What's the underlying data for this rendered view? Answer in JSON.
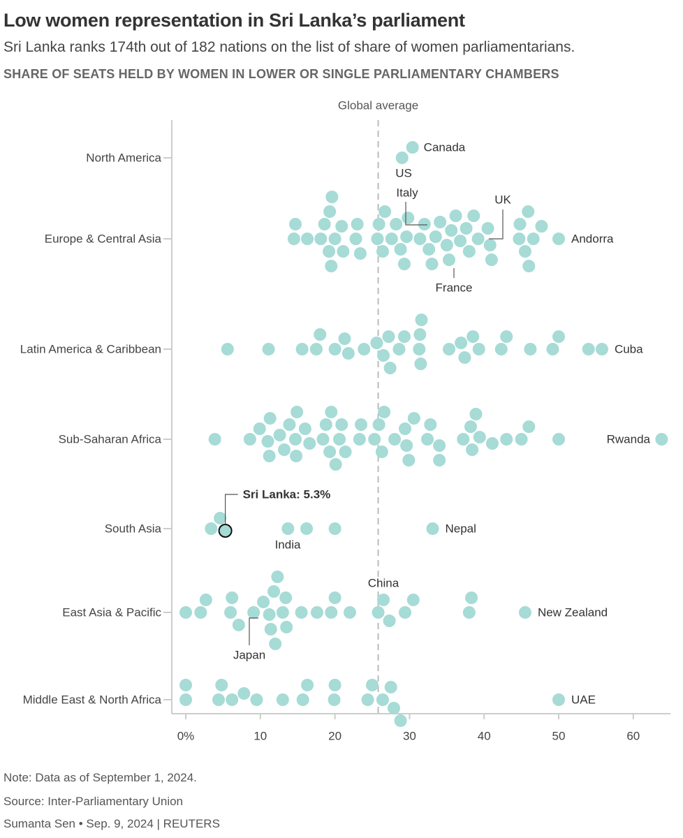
{
  "header": {
    "title": "Low women representation in Sri Lanka’s parliament",
    "subtitle": "Sri Lanka ranks 174th out of 182 nations on the list of share of women parliamentarians.",
    "chart_heading": "SHARE OF SEATS HELD BY WOMEN IN LOWER OR SINGLE PARLIAMENTARY CHAMBERS"
  },
  "footer": {
    "note": "Note: Data as of September 1, 2024.",
    "source": "Source: Inter-Parliamentary Union",
    "credit": "Sumanta Sen • Sep. 9, 2024 | REUTERS"
  },
  "colors": {
    "dot": "#a6dbd6",
    "highlight_stroke": "#111111",
    "axis": "#cccccc",
    "reference_line": "#bbbbbb",
    "text": "#444444"
  },
  "chart_data": {
    "type": "scatter",
    "subtype": "beeswarm",
    "xlabel": "",
    "ylabel": "",
    "xlim": [
      0,
      65
    ],
    "x_ticks": [
      {
        "value": 0,
        "label": "0%"
      },
      {
        "value": 10,
        "label": "10"
      },
      {
        "value": 20,
        "label": "20"
      },
      {
        "value": 30,
        "label": "30"
      },
      {
        "value": 40,
        "label": "40"
      },
      {
        "value": 50,
        "label": "50"
      },
      {
        "value": 60,
        "label": "60"
      }
    ],
    "reference_line": {
      "label": "Global average",
      "value": 25.8
    },
    "grid": false,
    "legend": "none",
    "categories": [
      "North America",
      "Europe & Central Asia",
      "Latin America & Caribbean",
      "Sub-Saharan Africa",
      "South Asia",
      "East Asia & Pacific",
      "Middle East & North Africa"
    ],
    "series": [
      {
        "region": "North America",
        "values": [
          30.4,
          29.0
        ]
      },
      {
        "region": "Europe & Central Asia",
        "values": [
          14.5,
          14.7,
          16.3,
          18.1,
          18.6,
          19.2,
          19.5,
          19.3,
          19.6,
          20.0,
          20.9,
          21.1,
          22.8,
          23.0,
          23.4,
          25.7,
          25.9,
          26.4,
          26.7,
          27.6,
          28.2,
          28.8,
          29.3,
          29.6,
          29.8,
          31.4,
          32.0,
          32.6,
          33.0,
          33.5,
          34.1,
          35.0,
          35.3,
          35.6,
          36.2,
          36.8,
          37.6,
          38.0,
          38.6,
          39.2,
          40.5,
          40.8,
          41.0,
          44.7,
          44.8,
          45.5,
          45.9,
          46.0,
          46.6,
          47.7,
          50.0
        ]
      },
      {
        "region": "Latin America & Caribbean",
        "values": [
          5.6,
          11.1,
          15.6,
          17.5,
          18.0,
          20.0,
          21.3,
          21.8,
          23.9,
          25.6,
          26.5,
          27.2,
          27.4,
          28.6,
          29.3,
          31.3,
          31.4,
          31.5,
          31.6,
          35.3,
          36.9,
          37.4,
          38.5,
          39.3,
          42.3,
          43.0,
          46.2,
          49.2,
          50.0,
          54.0,
          55.8
        ]
      },
      {
        "region": "Sub-Saharan Africa",
        "values": [
          3.9,
          8.6,
          9.9,
          11.0,
          11.2,
          11.3,
          12.6,
          13.2,
          13.9,
          14.7,
          14.8,
          14.9,
          16.0,
          16.6,
          18.4,
          18.8,
          19.3,
          19.5,
          20.1,
          20.6,
          20.9,
          21.4,
          23.3,
          23.5,
          25.3,
          25.9,
          26.3,
          26.6,
          28.0,
          29.4,
          29.6,
          29.9,
          30.6,
          32.4,
          32.8,
          34.0,
          34.0,
          37.2,
          38.2,
          38.4,
          38.9,
          39.4,
          41.1,
          43.0,
          45.0,
          46.0,
          50.0,
          63.8
        ]
      },
      {
        "region": "South Asia",
        "values": [
          3.4,
          4.6,
          5.3,
          13.7,
          16.2,
          20.0,
          33.1
        ]
      },
      {
        "region": "East Asia & Pacific",
        "values": [
          0.0,
          2.0,
          2.7,
          6.0,
          6.2,
          7.1,
          9.1,
          10.4,
          11.2,
          11.4,
          11.8,
          12.0,
          12.3,
          13.0,
          13.4,
          13.5,
          15.5,
          17.6,
          19.5,
          20.0,
          22.0,
          25.8,
          26.5,
          27.3,
          29.4,
          30.5,
          38.0,
          38.3,
          45.5
        ]
      },
      {
        "region": "Middle East & North Africa",
        "values": [
          0.0,
          0.0,
          4.4,
          4.8,
          6.2,
          7.8,
          9.5,
          13.0,
          15.7,
          16.3,
          19.9,
          20.0,
          24.4,
          25.0,
          26.4,
          27.5,
          27.9,
          28.8,
          50.0
        ]
      }
    ],
    "highlight": {
      "region": "South Asia",
      "name": "Sri Lanka",
      "value": 5.3,
      "label": "Sri Lanka: 5.3%"
    },
    "annotations": [
      {
        "region": "North America",
        "label": "Canada",
        "value": 30.4
      },
      {
        "region": "North America",
        "label": "US",
        "value": 29.0
      },
      {
        "region": "Europe & Central Asia",
        "label": "Italy",
        "value": 29.6
      },
      {
        "region": "Europe & Central Asia",
        "label": "UK",
        "value": 40.5
      },
      {
        "region": "Europe & Central Asia",
        "label": "France",
        "value": 36.2
      },
      {
        "region": "Europe & Central Asia",
        "label": "Andorra",
        "value": 50.0
      },
      {
        "region": "Latin America & Caribbean",
        "label": "Cuba",
        "value": 55.8
      },
      {
        "region": "Sub-Saharan Africa",
        "label": "Rwanda",
        "value": 63.8
      },
      {
        "region": "South Asia",
        "label": "India",
        "value": 13.7
      },
      {
        "region": "South Asia",
        "label": "Nepal",
        "value": 33.1
      },
      {
        "region": "East Asia & Pacific",
        "label": "China",
        "value": 26.5
      },
      {
        "region": "East Asia & Pacific",
        "label": "Japan",
        "value": 10.4
      },
      {
        "region": "East Asia & Pacific",
        "label": "New Zealand",
        "value": 45.5
      },
      {
        "region": "Middle East & North Africa",
        "label": "UAE",
        "value": 50.0
      }
    ]
  }
}
